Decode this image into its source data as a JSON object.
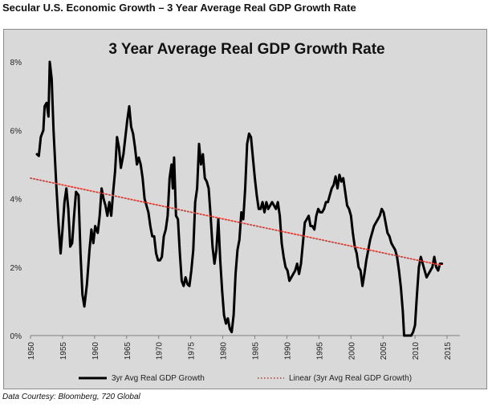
{
  "page": {
    "title": "Secular U.S. Economic Growth – 3 Year Average Real GDP Growth Rate",
    "source": "Data Courtesy: Bloomberg, 720 Global"
  },
  "chart_data": {
    "type": "line",
    "title": "3 Year Average Real GDP Growth Rate",
    "xlabel": "",
    "ylabel": "",
    "xlim": [
      1950,
      2017
    ],
    "ylim": [
      0,
      8
    ],
    "x_ticks": [
      1950,
      1955,
      1960,
      1965,
      1970,
      1975,
      1980,
      1985,
      1990,
      1995,
      2000,
      2005,
      2010,
      2015
    ],
    "x_tick_labels": [
      "1950",
      "1955",
      "1960",
      "1965",
      "1970",
      "1975",
      "1980",
      "1985",
      "1990",
      "1995",
      "2000",
      "2005",
      "2010",
      "2015"
    ],
    "y_ticks": [
      0,
      2,
      4,
      6,
      8
    ],
    "y_tick_labels": [
      "0%",
      "2%",
      "4%",
      "6%",
      "8%"
    ],
    "grid": false,
    "legend_position": "bottom",
    "series": [
      {
        "name": "3yr Avg Real GDP Growth",
        "color": "#000000",
        "style": "solid",
        "points": [
          [
            1951.0,
            5.3
          ],
          [
            1951.3,
            5.25
          ],
          [
            1951.6,
            5.8
          ],
          [
            1952.0,
            6.0
          ],
          [
            1952.2,
            6.7
          ],
          [
            1952.5,
            6.8
          ],
          [
            1952.8,
            6.4
          ],
          [
            1953.0,
            8.0
          ],
          [
            1953.3,
            7.5
          ],
          [
            1953.6,
            6.0
          ],
          [
            1954.0,
            4.5
          ],
          [
            1954.4,
            3.2
          ],
          [
            1954.7,
            2.4
          ],
          [
            1955.0,
            3.1
          ],
          [
            1955.3,
            3.9
          ],
          [
            1955.6,
            4.3
          ],
          [
            1955.9,
            3.7
          ],
          [
            1956.2,
            2.6
          ],
          [
            1956.5,
            2.7
          ],
          [
            1956.8,
            3.5
          ],
          [
            1957.1,
            4.2
          ],
          [
            1957.5,
            4.1
          ],
          [
            1957.8,
            2.4
          ],
          [
            1958.1,
            1.2
          ],
          [
            1958.4,
            0.85
          ],
          [
            1958.8,
            1.5
          ],
          [
            1959.2,
            2.5
          ],
          [
            1959.5,
            3.1
          ],
          [
            1959.8,
            2.7
          ],
          [
            1960.1,
            3.2
          ],
          [
            1960.5,
            3.0
          ],
          [
            1960.8,
            3.5
          ],
          [
            1961.1,
            4.3
          ],
          [
            1961.4,
            4.0
          ],
          [
            1961.7,
            3.8
          ],
          [
            1962.0,
            3.5
          ],
          [
            1962.3,
            3.9
          ],
          [
            1962.6,
            3.5
          ],
          [
            1962.9,
            4.2
          ],
          [
            1963.2,
            4.8
          ],
          [
            1963.5,
            5.8
          ],
          [
            1963.8,
            5.5
          ],
          [
            1964.1,
            4.9
          ],
          [
            1964.5,
            5.3
          ],
          [
            1964.8,
            5.8
          ],
          [
            1965.1,
            6.3
          ],
          [
            1965.4,
            6.7
          ],
          [
            1965.7,
            6.1
          ],
          [
            1966.0,
            5.9
          ],
          [
            1966.3,
            5.5
          ],
          [
            1966.6,
            5.0
          ],
          [
            1966.9,
            5.2
          ],
          [
            1967.2,
            5.0
          ],
          [
            1967.5,
            4.6
          ],
          [
            1967.8,
            4.0
          ],
          [
            1968.1,
            3.8
          ],
          [
            1968.4,
            3.6
          ],
          [
            1968.7,
            3.2
          ],
          [
            1969.0,
            2.9
          ],
          [
            1969.3,
            2.9
          ],
          [
            1969.6,
            2.4
          ],
          [
            1969.9,
            2.2
          ],
          [
            1970.2,
            2.2
          ],
          [
            1970.5,
            2.3
          ],
          [
            1970.8,
            2.9
          ],
          [
            1971.1,
            3.1
          ],
          [
            1971.4,
            3.5
          ],
          [
            1971.7,
            4.6
          ],
          [
            1972.0,
            5.0
          ],
          [
            1972.2,
            4.3
          ],
          [
            1972.4,
            5.2
          ],
          [
            1972.7,
            3.5
          ],
          [
            1973.0,
            3.4
          ],
          [
            1973.3,
            2.4
          ],
          [
            1973.6,
            1.6
          ],
          [
            1973.9,
            1.45
          ],
          [
            1974.2,
            1.7
          ],
          [
            1974.5,
            1.5
          ],
          [
            1974.8,
            1.45
          ],
          [
            1975.1,
            1.9
          ],
          [
            1975.4,
            2.5
          ],
          [
            1975.7,
            3.9
          ],
          [
            1976.0,
            4.3
          ],
          [
            1976.3,
            5.6
          ],
          [
            1976.6,
            5.0
          ],
          [
            1976.9,
            5.3
          ],
          [
            1977.2,
            4.6
          ],
          [
            1977.5,
            4.5
          ],
          [
            1977.8,
            4.3
          ],
          [
            1978.1,
            3.5
          ],
          [
            1978.4,
            2.6
          ],
          [
            1978.7,
            2.1
          ],
          [
            1979.0,
            2.5
          ],
          [
            1979.3,
            3.4
          ],
          [
            1979.6,
            2.2
          ],
          [
            1979.9,
            1.3
          ],
          [
            1980.2,
            0.6
          ],
          [
            1980.5,
            0.35
          ],
          [
            1980.8,
            0.5
          ],
          [
            1981.1,
            0.2
          ],
          [
            1981.4,
            0.1
          ],
          [
            1981.7,
            0.6
          ],
          [
            1982.0,
            1.8
          ],
          [
            1982.3,
            2.5
          ],
          [
            1982.6,
            2.8
          ],
          [
            1982.9,
            3.6
          ],
          [
            1983.2,
            3.4
          ],
          [
            1983.5,
            4.3
          ],
          [
            1983.8,
            5.6
          ],
          [
            1984.1,
            5.9
          ],
          [
            1984.4,
            5.8
          ],
          [
            1984.7,
            5.2
          ],
          [
            1985.0,
            4.6
          ],
          [
            1985.3,
            4.1
          ],
          [
            1985.6,
            3.7
          ],
          [
            1985.9,
            3.7
          ],
          [
            1986.2,
            3.9
          ],
          [
            1986.5,
            3.6
          ],
          [
            1986.8,
            3.9
          ],
          [
            1987.1,
            3.7
          ],
          [
            1987.4,
            3.8
          ],
          [
            1987.7,
            3.9
          ],
          [
            1988.0,
            3.8
          ],
          [
            1988.3,
            3.7
          ],
          [
            1988.6,
            3.9
          ],
          [
            1988.9,
            3.5
          ],
          [
            1989.2,
            2.7
          ],
          [
            1989.5,
            2.3
          ],
          [
            1989.8,
            2.0
          ],
          [
            1990.1,
            1.9
          ],
          [
            1990.4,
            1.6
          ],
          [
            1990.7,
            1.7
          ],
          [
            1991.0,
            1.8
          ],
          [
            1991.3,
            1.9
          ],
          [
            1991.6,
            2.1
          ],
          [
            1991.9,
            1.8
          ],
          [
            1992.2,
            2.1
          ],
          [
            1992.5,
            2.7
          ],
          [
            1992.8,
            3.3
          ],
          [
            1993.1,
            3.4
          ],
          [
            1993.4,
            3.5
          ],
          [
            1993.7,
            3.2
          ],
          [
            1994.0,
            3.2
          ],
          [
            1994.3,
            3.1
          ],
          [
            1994.6,
            3.5
          ],
          [
            1994.9,
            3.7
          ],
          [
            1995.2,
            3.6
          ],
          [
            1995.5,
            3.6
          ],
          [
            1995.8,
            3.7
          ],
          [
            1996.1,
            3.9
          ],
          [
            1996.4,
            3.9
          ],
          [
            1996.7,
            4.1
          ],
          [
            1997.0,
            4.3
          ],
          [
            1997.3,
            4.4
          ],
          [
            1997.6,
            4.65
          ],
          [
            1997.9,
            4.3
          ],
          [
            1998.2,
            4.7
          ],
          [
            1998.5,
            4.5
          ],
          [
            1998.8,
            4.6
          ],
          [
            1999.1,
            4.2
          ],
          [
            1999.4,
            3.8
          ],
          [
            1999.7,
            3.7
          ],
          [
            2000.0,
            3.5
          ],
          [
            2000.3,
            3.0
          ],
          [
            2000.6,
            2.6
          ],
          [
            2000.9,
            2.4
          ],
          [
            2001.2,
            2.0
          ],
          [
            2001.5,
            1.9
          ],
          [
            2001.8,
            1.45
          ],
          [
            2002.1,
            1.8
          ],
          [
            2002.4,
            2.2
          ],
          [
            2002.7,
            2.5
          ],
          [
            2003.0,
            2.8
          ],
          [
            2003.3,
            3.0
          ],
          [
            2003.6,
            3.2
          ],
          [
            2003.9,
            3.3
          ],
          [
            2004.2,
            3.4
          ],
          [
            2004.5,
            3.5
          ],
          [
            2004.8,
            3.7
          ],
          [
            2005.1,
            3.6
          ],
          [
            2005.4,
            3.3
          ],
          [
            2005.7,
            3.0
          ],
          [
            2006.0,
            2.9
          ],
          [
            2006.3,
            2.7
          ],
          [
            2006.6,
            2.6
          ],
          [
            2006.9,
            2.5
          ],
          [
            2007.2,
            2.3
          ],
          [
            2007.5,
            1.9
          ],
          [
            2007.8,
            1.4
          ],
          [
            2008.1,
            0.7
          ],
          [
            2008.3,
            0.0
          ],
          [
            2009.4,
            0.0
          ],
          [
            2009.7,
            0.1
          ],
          [
            2010.0,
            0.3
          ],
          [
            2010.3,
            1.2
          ],
          [
            2010.6,
            2.0
          ],
          [
            2010.9,
            2.3
          ],
          [
            2011.2,
            2.1
          ],
          [
            2011.5,
            1.9
          ],
          [
            2011.8,
            1.7
          ],
          [
            2012.1,
            1.8
          ],
          [
            2012.4,
            1.9
          ],
          [
            2012.7,
            2.0
          ],
          [
            2013.0,
            2.3
          ],
          [
            2013.3,
            2.0
          ],
          [
            2013.6,
            1.9
          ],
          [
            2013.9,
            2.1
          ],
          [
            2014.2,
            2.1
          ]
        ]
      },
      {
        "name": "Linear (3yr Avg Real GDP Growth)",
        "color": "#e03c31",
        "style": "dotted",
        "points": [
          [
            1950.0,
            4.6
          ],
          [
            2014.2,
            2.05
          ]
        ]
      }
    ]
  }
}
